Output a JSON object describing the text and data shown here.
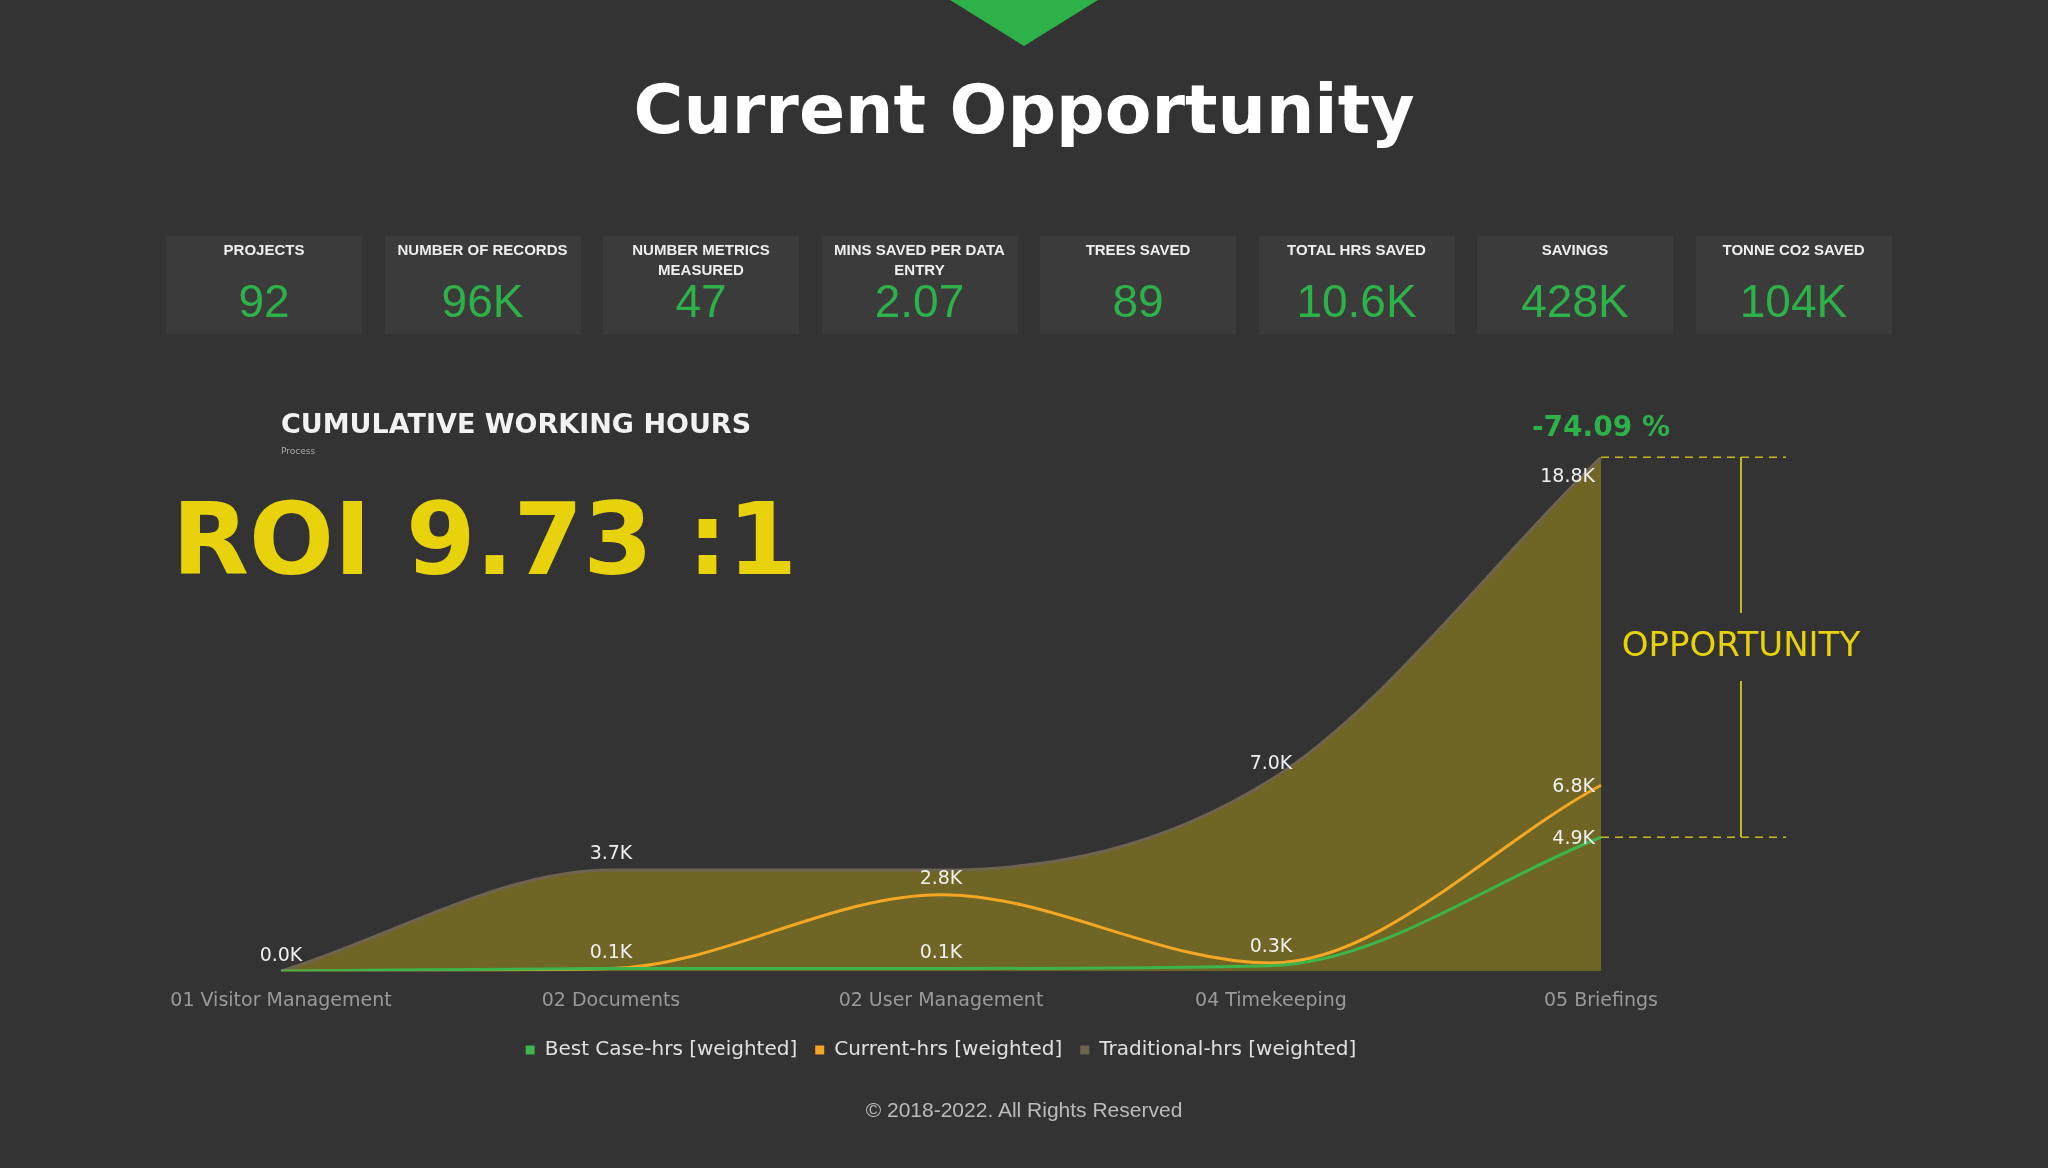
{
  "chart_data": [
    {
      "type": "other",
      "title": "Current Opportunity",
      "categories": [
        "PROJECTS",
        "NUMBER OF RECORDS",
        "NUMBER METRICS MEASURED",
        "MINS SAVED PER DATA ENTRY",
        "TREES SAVED",
        "TOTAL HRS SAVED",
        "SAVINGS",
        "TONNE CO2 SAVED"
      ],
      "value_labels": [
        "92",
        "96K",
        "47",
        "2.07",
        "89",
        "10.6K",
        "428K",
        "104K"
      ]
    },
    {
      "type": "line",
      "title": "CUMULATIVE WORKING HOURS",
      "subtitle": "Process",
      "categories": [
        "01 Visitor Management",
        "02 Documents",
        "02 User Management",
        "04 Timekeeping",
        "05 Briefings"
      ],
      "series": [
        {
          "name": "Best Case-hrs [weighted]",
          "color": "#3cb54a",
          "values": [
            0,
            0.1,
            0.1,
            0.2,
            4.9
          ],
          "value_labels": [
            null,
            null,
            "0.1K",
            null,
            "4.9K"
          ]
        },
        {
          "name": "Current-hrs [weighted]",
          "color": "#f5a623",
          "values": [
            0,
            0.1,
            2.8,
            0.3,
            6.8
          ],
          "value_labels": [
            null,
            "0.1K",
            "2.8K",
            "0.3K",
            "6.8K"
          ]
        },
        {
          "name": "Traditional-hrs [weighted]",
          "type": "area",
          "color": "#6e6450",
          "values": [
            0,
            3.7,
            3.7,
            7.0,
            18.8
          ],
          "value_labels": [
            "0.0K",
            "3.7K",
            null,
            "7.0K",
            "18.8K"
          ]
        }
      ],
      "ref_lines": [
        {
          "axis": "y",
          "value": 18.8,
          "color": "#c9b81e",
          "line_style": "dashed"
        },
        {
          "axis": "y",
          "value": 4.9,
          "color": "#c9b81e",
          "line_style": "dashed"
        }
      ],
      "annotations": [
        "ROI 9.73 :1",
        "-74.09 %",
        "OPPORTUNITY",
        "© 2018-2022. All Rights Reserved"
      ],
      "legend": "bottom",
      "marker": "none",
      "line_style": "solid",
      "grid": false
    }
  ]
}
